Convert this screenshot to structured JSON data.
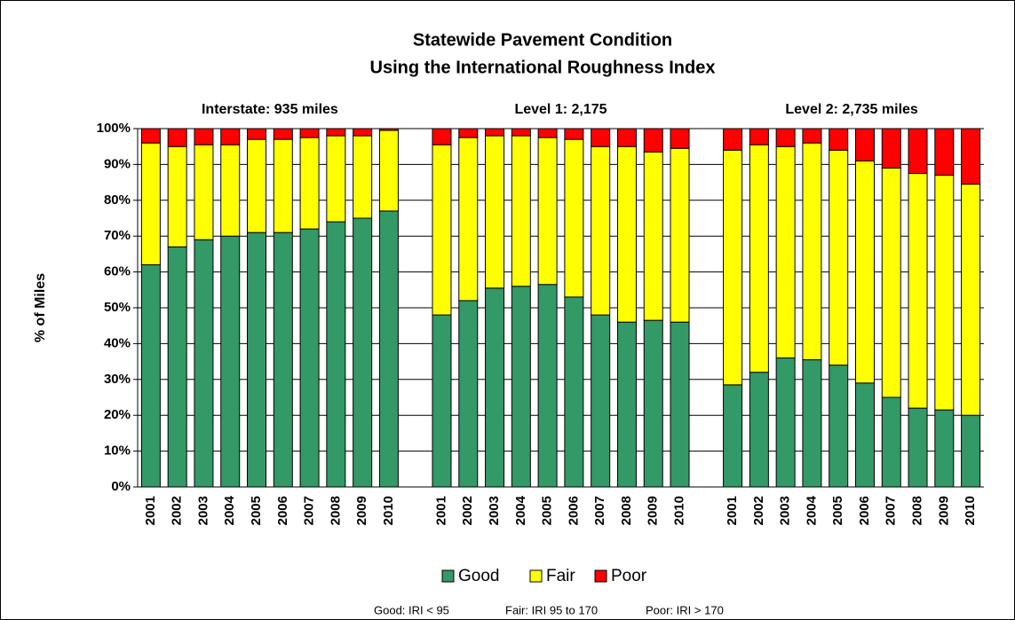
{
  "chart_data": {
    "type": "stacked_bar",
    "title": "Statewide Pavement Condition",
    "subtitle": "Using the International Roughness Index",
    "y_label": "% of Miles",
    "groups": [
      "Interstate: 935 miles",
      "Level 1:  2,175",
      "Level 2:  2,735 miles"
    ],
    "categories": [
      "2001",
      "2002",
      "2003",
      "2004",
      "2005",
      "2006",
      "2007",
      "2008",
      "2009",
      "2010",
      "2001",
      "2002",
      "2003",
      "2004",
      "2005",
      "2006",
      "2007",
      "2008",
      "2009",
      "2010",
      "2001",
      "2002",
      "2003",
      "2004",
      "2005",
      "2006",
      "2007",
      "2008",
      "2009",
      "2010"
    ],
    "series": [
      {
        "name": "Good",
        "color": "#339966",
        "values": [
          62,
          67,
          69,
          70,
          71,
          71,
          72,
          74,
          75,
          77,
          48,
          52,
          55.5,
          56,
          56.5,
          53,
          48,
          46,
          46.5,
          46,
          28.5,
          32,
          36,
          35.5,
          34,
          29,
          25,
          22,
          21.5,
          20
        ]
      },
      {
        "name": "Fair",
        "color": "#ffff00",
        "values": [
          34,
          28,
          26.5,
          25.5,
          26,
          26,
          25.5,
          24,
          23,
          22.5,
          47.5,
          45.5,
          42.5,
          42,
          41,
          44,
          47,
          49,
          47,
          48.5,
          65.5,
          63.5,
          59,
          60.5,
          60,
          62,
          64,
          65.5,
          65.5,
          64.5
        ]
      },
      {
        "name": "Poor",
        "color": "#ff0000",
        "values": [
          4,
          5,
          4.5,
          4.5,
          3,
          3,
          2.5,
          2,
          2,
          0.5,
          4.5,
          2.5,
          2,
          2,
          2.5,
          3,
          5,
          5,
          6.5,
          5.5,
          6,
          4.5,
          5,
          4,
          6,
          9,
          11,
          12.5,
          13,
          15.5
        ]
      }
    ],
    "ylim": [
      0,
      100
    ],
    "yticks": [
      {
        "value": 0,
        "label": "0%"
      },
      {
        "value": 10,
        "label": "10%"
      },
      {
        "value": 20,
        "label": "20%"
      },
      {
        "value": 30,
        "label": "30%"
      },
      {
        "value": 40,
        "label": "40%"
      },
      {
        "value": 50,
        "label": "50%"
      },
      {
        "value": 60,
        "label": "60%"
      },
      {
        "value": 70,
        "label": "70%"
      },
      {
        "value": 80,
        "label": "80%"
      },
      {
        "value": 90,
        "label": "90%"
      },
      {
        "value": 100,
        "label": "100%"
      }
    ],
    "grid": true,
    "footnotes": [
      "Good: IRI < 95",
      "Fair: IRI  95 to 170",
      "Poor: IRI > 170"
    ]
  }
}
